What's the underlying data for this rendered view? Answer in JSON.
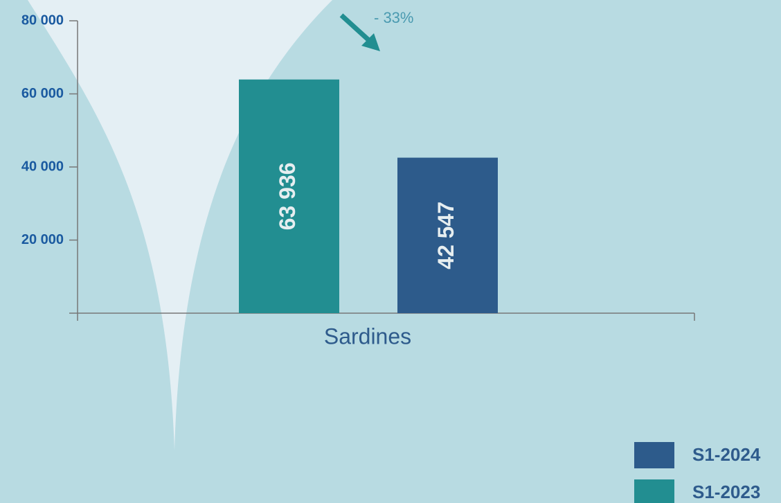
{
  "chart_data": {
    "type": "bar",
    "categories": [
      "Sardines"
    ],
    "series": [
      {
        "name": "S1-2023",
        "color": "#228e91",
        "values": [
          63936
        ],
        "value_labels": [
          "63 936"
        ]
      },
      {
        "name": "S1-2024",
        "color": "#2d5b8b",
        "values": [
          42547
        ],
        "value_labels": [
          "42 547"
        ]
      }
    ],
    "annotation": "- 33%",
    "ylim": [
      0,
      80000
    ],
    "yticks": [
      {
        "value": 20000,
        "label": "20 000"
      },
      {
        "value": 40000,
        "label": "40 000"
      },
      {
        "value": 60000,
        "label": "60 000"
      },
      {
        "value": 80000,
        "label": "80 000"
      }
    ],
    "grid": false,
    "legend": "bottom-right"
  }
}
